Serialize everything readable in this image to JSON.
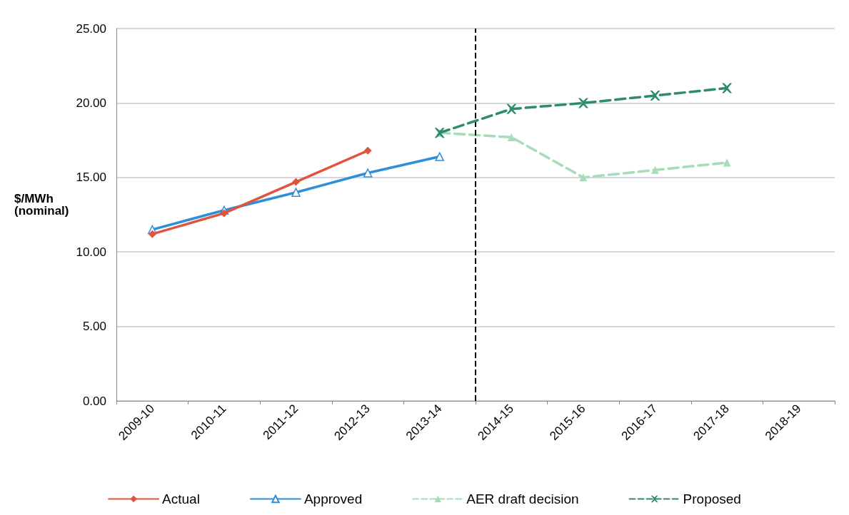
{
  "chart_data": {
    "type": "line",
    "ylabel": "$/MWh\n(nominal)",
    "categories": [
      "2009-10",
      "2010-11",
      "2011-12",
      "2012-13",
      "2013-14",
      "2014-15",
      "2015-16",
      "2016-17",
      "2017-18",
      "2018-19"
    ],
    "series": [
      {
        "name": "Actual",
        "color": "#e0533f",
        "marker": "diamond",
        "line_style": "solid",
        "values": [
          11.2,
          12.6,
          14.7,
          16.8,
          null,
          null,
          null,
          null,
          null,
          null
        ]
      },
      {
        "name": "Approved",
        "color": "#2f8fd6",
        "marker": "triangle",
        "line_style": "solid",
        "values": [
          11.5,
          12.8,
          14.0,
          15.3,
          16.4,
          null,
          null,
          null,
          null,
          null
        ]
      },
      {
        "name": "AER draft decision",
        "color": "#a6dcb8",
        "marker": "triangle",
        "line_style": "dashed",
        "values": [
          null,
          null,
          null,
          null,
          18.0,
          17.7,
          15.0,
          15.5,
          16.0,
          null
        ]
      },
      {
        "name": "Proposed",
        "color": "#2e8c6a",
        "marker": "cross",
        "line_style": "dashed",
        "values": [
          null,
          null,
          null,
          null,
          18.0,
          19.6,
          20.0,
          20.5,
          21.0,
          null
        ]
      }
    ],
    "ylim": [
      0,
      25
    ],
    "yticks": [
      {
        "value": 0,
        "label": "0.00"
      },
      {
        "value": 5,
        "label": "5.00"
      },
      {
        "value": 10,
        "label": "10.00"
      },
      {
        "value": 15,
        "label": "15.00"
      },
      {
        "value": 20,
        "label": "20.00"
      },
      {
        "value": 25,
        "label": "25.00"
      }
    ],
    "ref_lines": [
      {
        "axis": "x",
        "value": "2014-15",
        "color": "#000000",
        "line_style": "dashed"
      }
    ],
    "grid": "y",
    "legend": "bottom"
  }
}
